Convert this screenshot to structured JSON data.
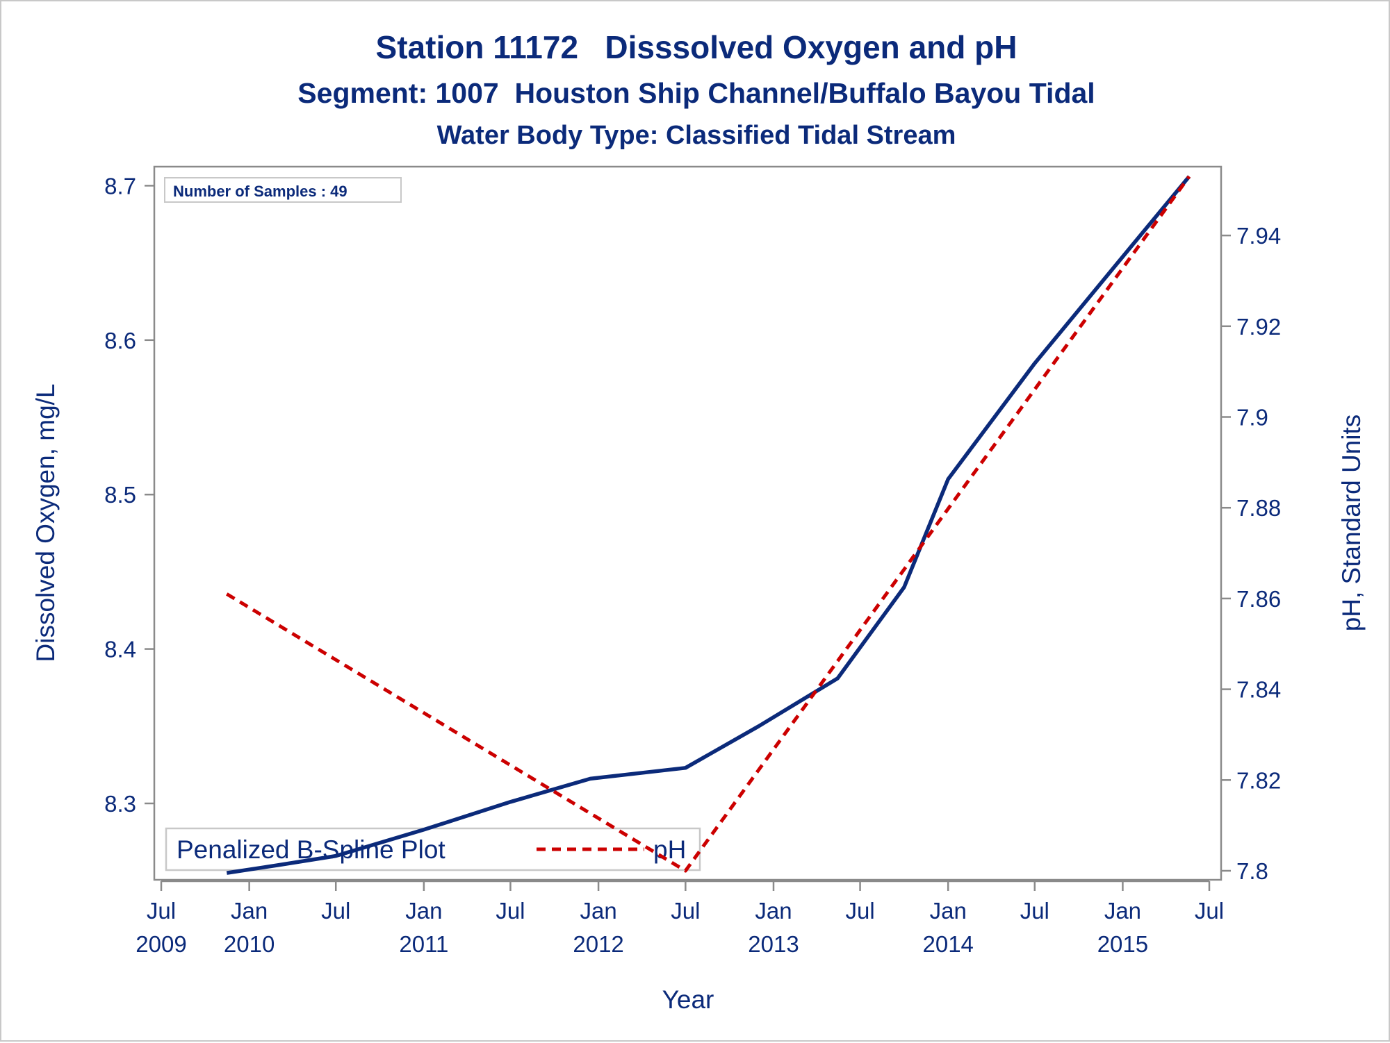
{
  "chart_data": {
    "type": "line",
    "title": "Station 11172   Disssolved Oxygen and pH",
    "subtitle": "Segment: 1007  Houston Ship Channel/Buffalo Bayou Tidal",
    "subtitle2": "Water Body Type: Classified Tidal Stream",
    "xlabel": "Year",
    "ylabel_left": "Dissolved Oxygen, mg/L",
    "ylabel_right": "pH, Standard Units",
    "annotation": "Number of Samples : 49",
    "legend": {
      "title": "Penalized B-Spline Plot",
      "placement": "bottom-left",
      "entries": [
        "pH"
      ]
    },
    "xlim": [
      "2009-07-01",
      "2015-07-01"
    ],
    "ylim_left": [
      8.246,
      8.71
    ],
    "ylim_right": [
      7.798,
      7.951
    ],
    "x_ticks": [
      {
        "date": "2009-07-01",
        "month": "Jul",
        "year": "2009"
      },
      {
        "date": "2010-01-01",
        "month": "Jan",
        "year": "2010"
      },
      {
        "date": "2010-07-01",
        "month": "Jul",
        "year": ""
      },
      {
        "date": "2011-01-01",
        "month": "Jan",
        "year": "2011"
      },
      {
        "date": "2011-07-01",
        "month": "Jul",
        "year": ""
      },
      {
        "date": "2012-01-01",
        "month": "Jan",
        "year": "2012"
      },
      {
        "date": "2012-07-01",
        "month": "Jul",
        "year": ""
      },
      {
        "date": "2013-01-01",
        "month": "Jan",
        "year": "2013"
      },
      {
        "date": "2013-07-01",
        "month": "Jul",
        "year": ""
      },
      {
        "date": "2014-01-01",
        "month": "Jan",
        "year": "2014"
      },
      {
        "date": "2014-07-01",
        "month": "Jul",
        "year": ""
      },
      {
        "date": "2015-01-01",
        "month": "Jan",
        "year": "2015"
      },
      {
        "date": "2015-07-01",
        "month": "Jul",
        "year": ""
      }
    ],
    "y_ticks_left": [
      "8.3",
      "8.4",
      "8.5",
      "8.6",
      "8.7"
    ],
    "y_ticks_right": [
      "7.8",
      "7.82",
      "7.84",
      "7.86",
      "7.88",
      "7.9",
      "7.92",
      "7.94"
    ],
    "series": [
      {
        "name": "",
        "axis": "left",
        "style": "solid",
        "color": "#0b2a7a",
        "points": [
          [
            "2009-11-15",
            8.255
          ],
          [
            "2010-03-01",
            8.26
          ],
          [
            "2010-07-01",
            8.266
          ],
          [
            "2011-01-01",
            8.283
          ],
          [
            "2011-07-01",
            8.301
          ],
          [
            "2011-12-15",
            8.316
          ],
          [
            "2012-07-01",
            8.323
          ],
          [
            "2012-12-01",
            8.35
          ],
          [
            "2013-05-15",
            8.381
          ],
          [
            "2013-10-01",
            8.44
          ],
          [
            "2014-01-01",
            8.51
          ],
          [
            "2014-07-01",
            8.585
          ],
          [
            "2015-01-01",
            8.654
          ],
          [
            "2015-05-20",
            8.706
          ]
        ]
      },
      {
        "name": "pH",
        "axis": "right",
        "style": "dashed",
        "color": "#cc0000",
        "points": [
          [
            "2009-11-15",
            7.861
          ],
          [
            "2012-07-01",
            7.8
          ],
          [
            "2015-05-20",
            7.953
          ]
        ]
      }
    ]
  }
}
